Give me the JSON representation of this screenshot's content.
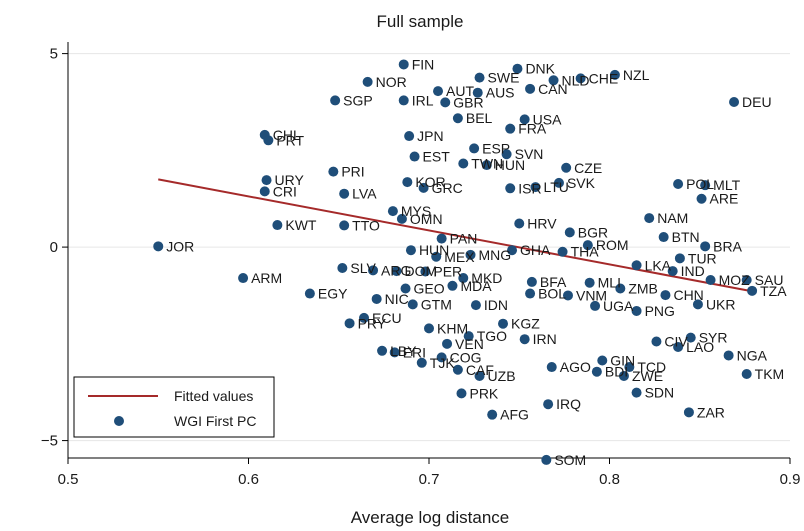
{
  "chart_data": {
    "type": "scatter",
    "title": "Full sample",
    "xlabel": "Average log distance",
    "ylabel": "",
    "xlim": [
      0.5,
      0.9
    ],
    "ylim": [
      -5.45,
      5.3
    ],
    "xticks": [
      0.5,
      0.6,
      0.7,
      0.8,
      0.9
    ],
    "xtick_labels": [
      "0.5",
      "0.6",
      "0.7",
      "0.8",
      "0.9"
    ],
    "yticks": [
      5,
      0,
      -5
    ],
    "ytick_labels": [
      "5",
      "0",
      "−5"
    ],
    "grid": "horizontal",
    "legend_position": "bottom-left",
    "colors": {
      "points": "#1f4e79",
      "fit": "#a52a2a",
      "grid": "#e6e6e6"
    },
    "fit_line": {
      "name": "Fitted values",
      "x": [
        0.55,
        0.88
      ],
      "y": [
        1.75,
        -1.15
      ]
    },
    "series": [
      {
        "name": "WGI First PC",
        "points": [
          {
            "label": "FIN",
            "x": 0.686,
            "y": 4.72
          },
          {
            "label": "DNK",
            "x": 0.749,
            "y": 4.61
          },
          {
            "label": "NZL",
            "x": 0.803,
            "y": 4.45
          },
          {
            "label": "SWE",
            "x": 0.728,
            "y": 4.38
          },
          {
            "label": "CHE",
            "x": 0.784,
            "y": 4.36
          },
          {
            "label": "NLD",
            "x": 0.769,
            "y": 4.31
          },
          {
            "label": "NOR",
            "x": 0.666,
            "y": 4.27
          },
          {
            "label": "CAN",
            "x": 0.756,
            "y": 4.09
          },
          {
            "label": "AUT",
            "x": 0.705,
            "y": 4.03
          },
          {
            "label": "AUS",
            "x": 0.727,
            "y": 3.99
          },
          {
            "label": "SGP",
            "x": 0.648,
            "y": 3.79
          },
          {
            "label": "IRL",
            "x": 0.686,
            "y": 3.79
          },
          {
            "label": "GBR",
            "x": 0.709,
            "y": 3.74
          },
          {
            "label": "DEU",
            "x": 0.869,
            "y": 3.75
          },
          {
            "label": "BEL",
            "x": 0.716,
            "y": 3.33
          },
          {
            "label": "USA",
            "x": 0.753,
            "y": 3.3
          },
          {
            "label": "FRA",
            "x": 0.745,
            "y": 3.06
          },
          {
            "label": "JPN",
            "x": 0.689,
            "y": 2.87
          },
          {
            "label": "CHL",
            "x": 0.609,
            "y": 2.9
          },
          {
            "label": "PRT",
            "x": 0.611,
            "y": 2.76
          },
          {
            "label": "ESP",
            "x": 0.725,
            "y": 2.55
          },
          {
            "label": "SVN",
            "x": 0.743,
            "y": 2.4
          },
          {
            "label": "EST",
            "x": 0.692,
            "y": 2.34
          },
          {
            "label": "TWN",
            "x": 0.719,
            "y": 2.16
          },
          {
            "label": "HUN",
            "x": 0.732,
            "y": 2.12
          },
          {
            "label": "CZE",
            "x": 0.776,
            "y": 2.05
          },
          {
            "label": "PRI",
            "x": 0.647,
            "y": 1.95
          },
          {
            "label": "URY",
            "x": 0.61,
            "y": 1.73
          },
          {
            "label": "CRI",
            "x": 0.609,
            "y": 1.44
          },
          {
            "label": "KOR",
            "x": 0.688,
            "y": 1.68
          },
          {
            "label": "GRC",
            "x": 0.697,
            "y": 1.53
          },
          {
            "label": "LVA",
            "x": 0.653,
            "y": 1.38
          },
          {
            "label": "ISR",
            "x": 0.745,
            "y": 1.52
          },
          {
            "label": "LTU",
            "x": 0.759,
            "y": 1.55
          },
          {
            "label": "SVK",
            "x": 0.772,
            "y": 1.66
          },
          {
            "label": "POL",
            "x": 0.838,
            "y": 1.63
          },
          {
            "label": "MLT",
            "x": 0.853,
            "y": 1.6
          },
          {
            "label": "ARE",
            "x": 0.851,
            "y": 1.25
          },
          {
            "label": "MYS",
            "x": 0.68,
            "y": 0.93
          },
          {
            "label": "OMN",
            "x": 0.685,
            "y": 0.73
          },
          {
            "label": "KWT",
            "x": 0.616,
            "y": 0.57
          },
          {
            "label": "TTO",
            "x": 0.653,
            "y": 0.56
          },
          {
            "label": "NAM",
            "x": 0.822,
            "y": 0.75
          },
          {
            "label": "HRV",
            "x": 0.75,
            "y": 0.61
          },
          {
            "label": "BGR",
            "x": 0.778,
            "y": 0.38
          },
          {
            "label": "BTN",
            "x": 0.83,
            "y": 0.26
          },
          {
            "label": "PAN",
            "x": 0.707,
            "y": 0.22
          },
          {
            "label": "ROM",
            "x": 0.788,
            "y": 0.05
          },
          {
            "label": "BRA",
            "x": 0.853,
            "y": 0.02
          },
          {
            "label": "JOR",
            "x": 0.55,
            "y": 0.02
          },
          {
            "label": "HUN2",
            "x": 0.69,
            "y": -0.08
          },
          {
            "label": "GHA",
            "x": 0.746,
            "y": -0.08
          },
          {
            "label": "THA",
            "x": 0.774,
            "y": -0.12
          },
          {
            "label": "MNG",
            "x": 0.723,
            "y": -0.2
          },
          {
            "label": "MEX",
            "x": 0.704,
            "y": -0.25
          },
          {
            "label": "TUR",
            "x": 0.839,
            "y": -0.29
          },
          {
            "label": "LKA",
            "x": 0.815,
            "y": -0.47
          },
          {
            "label": "IND",
            "x": 0.835,
            "y": -0.62
          },
          {
            "label": "SLV",
            "x": 0.652,
            "y": -0.54
          },
          {
            "label": "ARG",
            "x": 0.669,
            "y": -0.6
          },
          {
            "label": "DOM",
            "x": 0.682,
            "y": -0.62
          },
          {
            "label": "PER",
            "x": 0.698,
            "y": -0.63
          },
          {
            "label": "ARM",
            "x": 0.597,
            "y": -0.8
          },
          {
            "label": "MOZ",
            "x": 0.856,
            "y": -0.85
          },
          {
            "label": "SAU",
            "x": 0.876,
            "y": -0.85
          },
          {
            "label": "TZA",
            "x": 0.879,
            "y": -1.13
          },
          {
            "label": "MKD",
            "x": 0.719,
            "y": -0.8
          },
          {
            "label": "MDA",
            "x": 0.713,
            "y": -1.0
          },
          {
            "label": "BFA",
            "x": 0.757,
            "y": -0.9
          },
          {
            "label": "MLI",
            "x": 0.789,
            "y": -0.92
          },
          {
            "label": "ZMB",
            "x": 0.806,
            "y": -1.07
          },
          {
            "label": "EGY",
            "x": 0.634,
            "y": -1.2
          },
          {
            "label": "GEO",
            "x": 0.687,
            "y": -1.07
          },
          {
            "label": "CHN",
            "x": 0.831,
            "y": -1.24
          },
          {
            "label": "NIC",
            "x": 0.671,
            "y": -1.34
          },
          {
            "label": "BOL",
            "x": 0.756,
            "y": -1.2
          },
          {
            "label": "VNM",
            "x": 0.777,
            "y": -1.25
          },
          {
            "label": "UKR",
            "x": 0.849,
            "y": -1.48
          },
          {
            "label": "GTM",
            "x": 0.691,
            "y": -1.48
          },
          {
            "label": "IDN",
            "x": 0.726,
            "y": -1.5
          },
          {
            "label": "UGA",
            "x": 0.792,
            "y": -1.52
          },
          {
            "label": "PNG",
            "x": 0.815,
            "y": -1.65
          },
          {
            "label": "ECU",
            "x": 0.664,
            "y": -1.83
          },
          {
            "label": "PRY",
            "x": 0.656,
            "y": -1.97
          },
          {
            "label": "KGZ",
            "x": 0.741,
            "y": -1.98
          },
          {
            "label": "KHM",
            "x": 0.7,
            "y": -2.1
          },
          {
            "label": "TGO",
            "x": 0.722,
            "y": -2.3
          },
          {
            "label": "IRN",
            "x": 0.753,
            "y": -2.38
          },
          {
            "label": "SYR",
            "x": 0.845,
            "y": -2.34
          },
          {
            "label": "CIV",
            "x": 0.826,
            "y": -2.44
          },
          {
            "label": "VEN",
            "x": 0.71,
            "y": -2.5
          },
          {
            "label": "LBY",
            "x": 0.674,
            "y": -2.68
          },
          {
            "label": "ERI",
            "x": 0.681,
            "y": -2.72
          },
          {
            "label": "LAO",
            "x": 0.838,
            "y": -2.58
          },
          {
            "label": "NGA",
            "x": 0.866,
            "y": -2.8
          },
          {
            "label": "COG",
            "x": 0.707,
            "y": -2.85
          },
          {
            "label": "TJK",
            "x": 0.696,
            "y": -2.99
          },
          {
            "label": "CAF",
            "x": 0.716,
            "y": -3.17
          },
          {
            "label": "AGO",
            "x": 0.768,
            "y": -3.1
          },
          {
            "label": "GIN",
            "x": 0.796,
            "y": -2.93
          },
          {
            "label": "TCD",
            "x": 0.811,
            "y": -3.1
          },
          {
            "label": "BDI",
            "x": 0.793,
            "y": -3.22
          },
          {
            "label": "ZWE",
            "x": 0.808,
            "y": -3.33
          },
          {
            "label": "UZB",
            "x": 0.728,
            "y": -3.33
          },
          {
            "label": "TKM",
            "x": 0.876,
            "y": -3.28
          },
          {
            "label": "SDN",
            "x": 0.815,
            "y": -3.76
          },
          {
            "label": "PRK",
            "x": 0.718,
            "y": -3.78
          },
          {
            "label": "IRQ",
            "x": 0.766,
            "y": -4.06
          },
          {
            "label": "ZAR",
            "x": 0.844,
            "y": -4.27
          },
          {
            "label": "AFG",
            "x": 0.735,
            "y": -4.33
          },
          {
            "label": "SOM",
            "x": 0.765,
            "y": -5.5
          }
        ]
      }
    ]
  },
  "legend": {
    "items": [
      {
        "label": "Fitted values",
        "kind": "line"
      },
      {
        "label": "WGI First PC",
        "kind": "marker"
      }
    ]
  }
}
